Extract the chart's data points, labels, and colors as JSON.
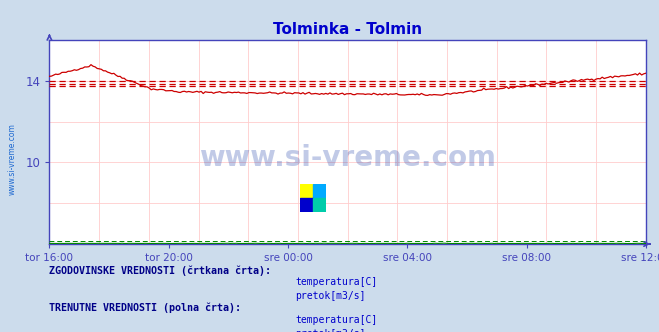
{
  "title": "Tolminka - Tolmin",
  "title_color": "#0000cc",
  "bg_color": "#ccdcec",
  "plot_bg_color": "#ffffff",
  "grid_color_x": "#ffcccc",
  "grid_color_y": "#ffcccc",
  "axis_color": "#4444bb",
  "watermark_text": "www.si-vreme.com",
  "watermark_color": "#2244aa",
  "ylim": [
    6,
    16
  ],
  "yticks": [
    10,
    14
  ],
  "xlabel_color": "#0000aa",
  "xtick_labels": [
    "tor 16:00",
    "tor 20:00",
    "sre 00:00",
    "sre 04:00",
    "sre 08:00",
    "sre 12:00"
  ],
  "n_points": 288,
  "temp_color": "#cc0000",
  "flow_color": "#008800",
  "hist_temp_line1": 14.0,
  "hist_temp_line2": 13.85,
  "hist_temp_line3": 13.72,
  "legend_title1": "ZGODOVINSKE VREDNOSTI (črtkana črta):",
  "legend_title2": "TRENUTNE VREDNOSTI (polna črta):",
  "legend_color": "#000088",
  "legend_label_color": "#0000cc",
  "sidebar_text": "www.si-vreme.com",
  "sidebar_color": "#0055cc"
}
